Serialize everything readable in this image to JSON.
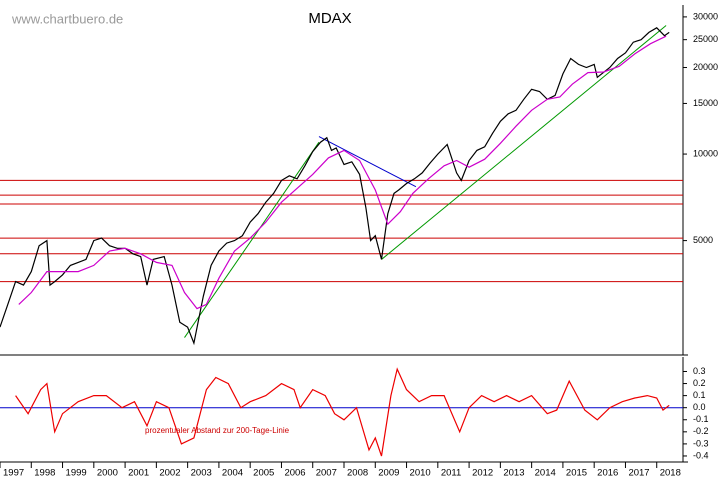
{
  "chart_data": [
    {
      "type": "line",
      "title": "MDAX",
      "annotation": "www.chartbuero.de",
      "log_scale": true,
      "xlim": [
        1997,
        2019
      ],
      "ylim": [
        2000,
        33000
      ],
      "yticks": [
        5000,
        10000,
        15000,
        20000,
        25000,
        30000
      ],
      "series": [
        {
          "color": "#000000",
          "x": [
            1997.0,
            1997.25,
            1997.5,
            1997.75,
            1998.0,
            1998.25,
            1998.5,
            1998.6,
            1998.75,
            1999.0,
            1999.25,
            1999.5,
            1999.75,
            2000.0,
            2000.25,
            2000.5,
            2000.75,
            2001.0,
            2001.25,
            2001.5,
            2001.7,
            2001.9,
            2002.25,
            2002.5,
            2002.75,
            2003.0,
            2003.2,
            2003.5,
            2003.75,
            2004.0,
            2004.25,
            2004.5,
            2004.75,
            2005.0,
            2005.25,
            2005.5,
            2005.75,
            2006.0,
            2006.25,
            2006.5,
            2006.75,
            2007.0,
            2007.25,
            2007.45,
            2007.6,
            2007.75,
            2008.0,
            2008.25,
            2008.5,
            2008.7,
            2008.85,
            2009.0,
            2009.2,
            2009.4,
            2009.6,
            2009.75,
            2010.0,
            2010.25,
            2010.5,
            2010.75,
            2011.0,
            2011.3,
            2011.6,
            2011.75,
            2012.0,
            2012.25,
            2012.5,
            2012.75,
            2013.0,
            2013.25,
            2013.5,
            2013.75,
            2014.0,
            2014.25,
            2014.5,
            2014.75,
            2015.0,
            2015.25,
            2015.5,
            2015.75,
            2016.0,
            2016.1,
            2016.5,
            2016.75,
            2017.0,
            2017.25,
            2017.5,
            2017.75,
            2018.0,
            2018.25,
            2018.4
          ],
          "values": [
            2500,
            3000,
            3600,
            3500,
            3900,
            4800,
            5000,
            3500,
            3600,
            3800,
            4100,
            4200,
            4300,
            5000,
            5100,
            4800,
            4700,
            4700,
            4500,
            4400,
            3500,
            4300,
            4400,
            3500,
            2600,
            2500,
            2200,
            3200,
            4100,
            4600,
            4900,
            5000,
            5200,
            5800,
            6200,
            6800,
            7300,
            8100,
            8400,
            8200,
            9100,
            10200,
            11000,
            11400,
            10300,
            10500,
            9200,
            9400,
            8500,
            6500,
            5000,
            5200,
            4300,
            6200,
            7300,
            7500,
            7900,
            8200,
            8600,
            9300,
            10000,
            10800,
            8600,
            8100,
            9500,
            10300,
            10600,
            11800,
            13000,
            13800,
            14200,
            15500,
            16800,
            16500,
            15500,
            16000,
            19000,
            21500,
            20500,
            20000,
            20500,
            18500,
            20000,
            21500,
            22500,
            24500,
            25000,
            26500,
            27500,
            25800,
            26500
          ]
        },
        {
          "color": "#cc00cc",
          "x": [
            1997.6,
            1998.0,
            1998.5,
            1999.0,
            1999.5,
            2000.0,
            2000.5,
            2001.0,
            2001.5,
            2002.0,
            2002.5,
            2002.9,
            2003.3,
            2003.6,
            2004.0,
            2004.5,
            2005.0,
            2005.5,
            2006.0,
            2006.5,
            2007.0,
            2007.5,
            2008.0,
            2008.5,
            2009.0,
            2009.4,
            2009.8,
            2010.2,
            2010.7,
            2011.2,
            2011.6,
            2012.0,
            2012.5,
            2013.0,
            2013.5,
            2014.0,
            2014.5,
            2014.9,
            2015.3,
            2015.8,
            2016.3,
            2016.8,
            2017.3,
            2017.8,
            2018.3
          ],
          "values": [
            3000,
            3300,
            3900,
            3900,
            3900,
            4100,
            4600,
            4700,
            4500,
            4200,
            4100,
            3300,
            2900,
            3000,
            3700,
            4600,
            5100,
            5800,
            6800,
            7600,
            8500,
            9700,
            10300,
            9500,
            7500,
            5700,
            6300,
            7300,
            8200,
            9100,
            9500,
            9000,
            9600,
            10900,
            12500,
            14200,
            15500,
            15800,
            17500,
            19200,
            19300,
            20200,
            22300,
            24200,
            25700
          ]
        }
      ],
      "trendlines": [
        {
          "color": "#009900",
          "x": [
            2002.9,
            2007.2
          ],
          "y": [
            2300,
            11000
          ]
        },
        {
          "color": "#009900",
          "x": [
            2009.2,
            2018.3
          ],
          "y": [
            4300,
            28000
          ]
        },
        {
          "color": "#0000cc",
          "x": [
            2007.2,
            2010.3
          ],
          "y": [
            11500,
            7700
          ]
        }
      ],
      "hlines": {
        "color": "#cc0000",
        "values": [
          8100,
          7200,
          6700,
          5100,
          4500,
          3600
        ]
      }
    },
    {
      "type": "line",
      "annotation": "prozentualer Abstand zur 200-Tage-Linie",
      "xlim": [
        1997,
        2019
      ],
      "ylim": [
        -0.45,
        0.42
      ],
      "xticks": [
        1997,
        1998,
        1999,
        2000,
        2001,
        2002,
        2003,
        2004,
        2005,
        2006,
        2007,
        2008,
        2009,
        2010,
        2011,
        2012,
        2013,
        2014,
        2015,
        2016,
        2017,
        2018
      ],
      "yticks": [
        -0.4,
        -0.3,
        -0.2,
        -0.1,
        {
          "value": 0,
          "label": "0.0"
        },
        0.1,
        0.2,
        0.3
      ],
      "series": [
        {
          "color": "#ee0000",
          "x": [
            1997.5,
            1997.9,
            1998.3,
            1998.5,
            1998.75,
            1999.0,
            1999.5,
            2000.0,
            2000.4,
            2000.9,
            2001.3,
            2001.7,
            2002.0,
            2002.4,
            2002.8,
            2003.2,
            2003.6,
            2003.9,
            2004.3,
            2004.7,
            2005.0,
            2005.5,
            2006.0,
            2006.4,
            2006.6,
            2007.0,
            2007.4,
            2007.7,
            2008.0,
            2008.4,
            2008.8,
            2009.0,
            2009.2,
            2009.5,
            2009.7,
            2010.0,
            2010.4,
            2010.8,
            2011.2,
            2011.7,
            2012.0,
            2012.4,
            2012.8,
            2013.2,
            2013.6,
            2014.0,
            2014.5,
            2014.8,
            2015.2,
            2015.7,
            2016.1,
            2016.5,
            2016.9,
            2017.3,
            2017.7,
            2018.0,
            2018.2,
            2018.4
          ],
          "values": [
            0.1,
            -0.05,
            0.15,
            0.2,
            -0.2,
            -0.05,
            0.05,
            0.1,
            0.1,
            0.0,
            0.05,
            -0.15,
            0.05,
            0.0,
            -0.3,
            -0.25,
            0.15,
            0.25,
            0.2,
            0.0,
            0.05,
            0.1,
            0.2,
            0.15,
            0.0,
            0.15,
            0.1,
            -0.05,
            -0.1,
            0.0,
            -0.35,
            -0.25,
            -0.4,
            0.1,
            0.32,
            0.15,
            0.05,
            0.1,
            0.1,
            -0.2,
            0.0,
            0.1,
            0.05,
            0.1,
            0.05,
            0.1,
            -0.05,
            -0.02,
            0.22,
            -0.02,
            -0.1,
            0.0,
            0.05,
            0.08,
            0.1,
            0.08,
            -0.02,
            0.02
          ]
        }
      ],
      "hlines": {
        "color": "#0000cc",
        "values": [
          0
        ]
      }
    }
  ]
}
